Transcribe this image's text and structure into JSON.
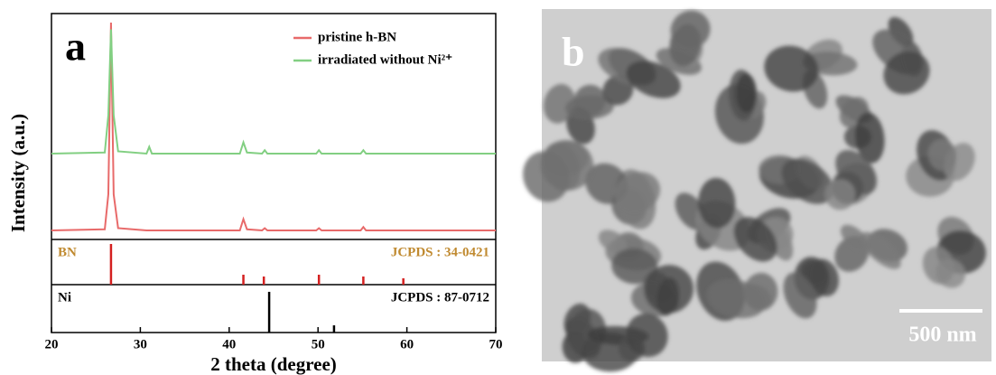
{
  "chart_data": [
    {
      "type": "line",
      "panel_label": "a",
      "xlabel": "2 theta (degree)",
      "ylabel": "Intensity (a.u.)",
      "xlim": [
        20,
        70
      ],
      "xticks": [
        20,
        30,
        40,
        50,
        60,
        70
      ],
      "ylim": [
        0,
        100
      ],
      "legend": "upper right",
      "x": [
        20,
        26.0,
        26.4,
        26.7,
        27.0,
        27.5,
        30.7,
        31.0,
        31.3,
        41.2,
        41.6,
        42.0,
        43.7,
        44.0,
        44.3,
        49.8,
        50.1,
        50.4,
        54.8,
        55.1,
        55.4,
        70
      ],
      "series": [
        {
          "name": "pristine h-BN",
          "color": "#e86a6a",
          "values": [
            4,
            4.5,
            20,
            96,
            20,
            5,
            4,
            4,
            4,
            4,
            9,
            4.5,
            4,
            5,
            4,
            4,
            5,
            4,
            4,
            5.5,
            4,
            4
          ]
        },
        {
          "name": "irradiated without Ni²⁺",
          "color": "#82cf82",
          "values": [
            38,
            38.5,
            55,
            93,
            55,
            39,
            38,
            41,
            38,
            38,
            43,
            38.5,
            38,
            39.5,
            38,
            38,
            39.5,
            38,
            38,
            39.5,
            38,
            38
          ]
        }
      ]
    },
    {
      "type": "stick",
      "name": "BN",
      "reference": "JCPDS : 34-0421",
      "color": "#d42020",
      "label_color": "#c08a30",
      "ylim": [
        0,
        100
      ],
      "x": [
        26.7,
        41.6,
        43.9,
        50.1,
        55.1,
        59.6
      ],
      "values": [
        90,
        22,
        18,
        22,
        18,
        14
      ]
    },
    {
      "type": "stick",
      "name": "Ni",
      "reference": "JCPDS : 87-0712",
      "color": "#000000",
      "label_color": "#000000",
      "ylim": [
        0,
        100
      ],
      "x": [
        44.5,
        51.8
      ],
      "values": [
        85,
        15
      ]
    }
  ],
  "tem_image": {
    "label": "b",
    "scale_bar": "500 nm"
  }
}
